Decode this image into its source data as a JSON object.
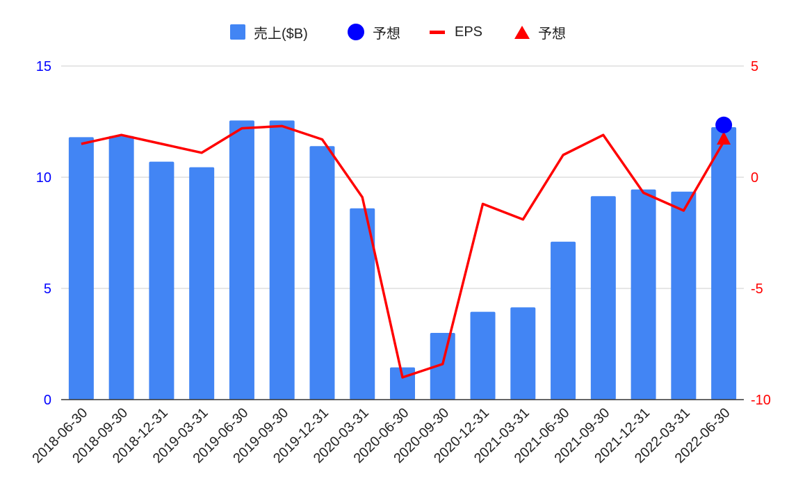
{
  "colors": {
    "bar": "#4285f4",
    "eps": "#ff0000",
    "forecast_sales": "#0000ff",
    "forecast_eps": "#ff0000",
    "left_axis": "#0000ff",
    "right_axis": "#ff0000",
    "grid": "#cccccc",
    "baseline": "#333333",
    "text": "#222222"
  },
  "legend": [
    {
      "label": "売上($B)",
      "shape": "square",
      "color": "#4285f4"
    },
    {
      "label": "予想",
      "shape": "circle",
      "color": "#0000ff"
    },
    {
      "label": "EPS",
      "shape": "line",
      "color": "#ff0000"
    },
    {
      "label": "予想",
      "shape": "triangle",
      "color": "#ff0000"
    }
  ],
  "chart_data": {
    "type": "bar",
    "title": "",
    "categories": [
      "2018-06-30",
      "2018-09-30",
      "2018-12-31",
      "2019-03-31",
      "2019-06-30",
      "2019-09-30",
      "2019-12-31",
      "2020-03-31",
      "2020-06-30",
      "2020-09-30",
      "2020-12-31",
      "2021-03-31",
      "2021-06-30",
      "2021-09-30",
      "2021-12-31",
      "2022-03-31",
      "2022-06-30"
    ],
    "series": [
      {
        "name": "売上($B)",
        "type": "bar",
        "axis": "left",
        "values": [
          11.8,
          11.85,
          10.7,
          10.45,
          12.55,
          12.55,
          11.4,
          8.6,
          1.45,
          3.0,
          3.95,
          4.15,
          7.1,
          9.15,
          9.45,
          9.35,
          12.25
        ]
      },
      {
        "name": "予想",
        "type": "point",
        "axis": "left",
        "marker": "circle",
        "index": 16,
        "value": 12.35
      },
      {
        "name": "EPS",
        "type": "line",
        "axis": "right",
        "values": [
          1.5,
          1.9,
          1.5,
          1.1,
          2.2,
          2.3,
          1.7,
          -0.9,
          -9.0,
          -8.4,
          -1.2,
          -1.9,
          1.0,
          1.9,
          -0.7,
          -1.5,
          1.6
        ]
      },
      {
        "name": "予想",
        "type": "point",
        "axis": "right",
        "marker": "triangle",
        "index": 16,
        "value": 1.75
      }
    ],
    "y_left": {
      "ylim": [
        0,
        15
      ],
      "ticks": [
        "0",
        "5",
        "10",
        "15"
      ]
    },
    "y_right": {
      "ylim": [
        -10,
        5
      ],
      "ticks": [
        "-10",
        "-5",
        "0",
        "5"
      ]
    },
    "grid": true,
    "legend_position": "top"
  }
}
